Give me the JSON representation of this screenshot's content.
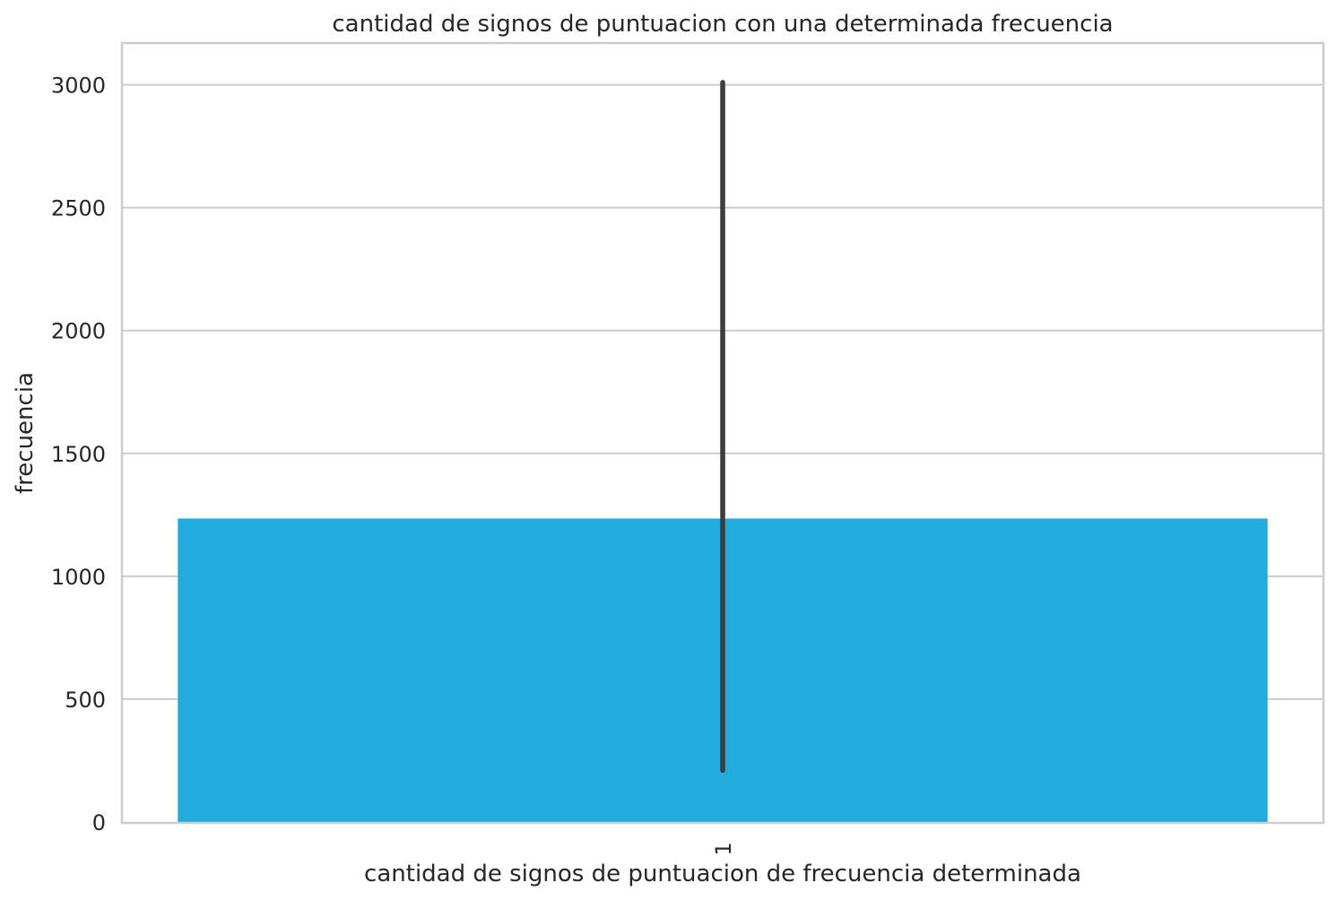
{
  "chart_data": {
    "type": "bar",
    "title": "cantidad de signos de puntuacion con una determinada frecuencia",
    "xlabel": "cantidad de signos de puntuacion de frecuencia determinada",
    "ylabel": "frecuencia",
    "categories": [
      "1"
    ],
    "values": [
      1235
    ],
    "error_bars": [
      {
        "low": 210,
        "high": 3010
      }
    ],
    "ylim": [
      0,
      3170
    ],
    "yticks": [
      0,
      500,
      1000,
      1500,
      2000,
      2500,
      3000
    ],
    "ytick_labels": [
      "0",
      "500",
      "1000",
      "1500",
      "2000",
      "2500",
      "3000"
    ],
    "xtick_rotation": "vertical",
    "grid": "horizontal",
    "colors": {
      "bar": "#22acdd",
      "error_bar": "#3d3d3d",
      "grid": "#cccccc",
      "text": "#262626"
    }
  }
}
